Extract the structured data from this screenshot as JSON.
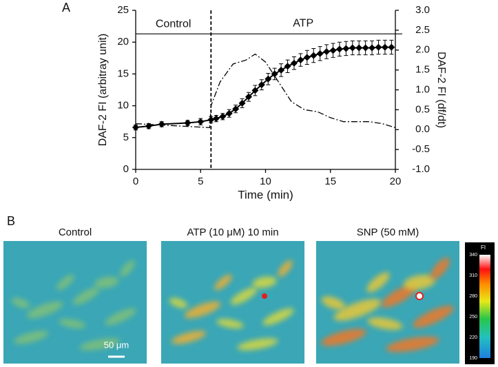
{
  "panel_labels": [
    "A",
    "B"
  ],
  "chart_data": {
    "type": "line",
    "xlabel": "Time (min)",
    "ylabel": "DAF-2 FI (arbitray unit)",
    "y2label": "DAF-2 FI (df/dt)",
    "xlim": [
      0,
      20
    ],
    "xticks": [
      0,
      5,
      10,
      15,
      20
    ],
    "ylim": [
      0,
      25
    ],
    "yticks": [
      0,
      5,
      10,
      15,
      20,
      25
    ],
    "y2lim": [
      -1,
      3
    ],
    "y2ticks": [
      {
        "value": 3,
        "label": "3.0"
      },
      2.5,
      {
        "value": 2,
        "label": "2.0"
      },
      1.5,
      {
        "value": 1,
        "label": "1.0"
      },
      0.5,
      {
        "value": 0,
        "label": "0.0"
      },
      -0.5,
      {
        "value": -1,
        "label": "-1.0"
      }
    ],
    "vline_x": 5.8,
    "hline_y": 21.3,
    "annotations": [
      "Control",
      "ATP"
    ],
    "series": [
      {
        "color": "#000000",
        "axis": "y",
        "x": [
          0,
          1,
          2,
          4,
          5,
          5.8,
          6.2,
          6.7,
          7.2,
          7.7,
          8.2,
          8.7,
          9.2,
          9.7,
          10.2,
          10.7,
          11.2,
          11.7,
          12.2,
          12.7,
          13.2,
          13.7,
          14.2,
          14.7,
          15.2,
          15.7,
          16.2,
          16.7,
          17.2,
          17.7,
          18.2,
          18.7,
          19.2,
          19.7
        ],
        "values": [
          6.6,
          6.8,
          7.1,
          7.3,
          7.5,
          7.8,
          8.0,
          8.3,
          8.8,
          9.5,
          10.4,
          11.4,
          12.4,
          13.3,
          14.2,
          15.0,
          15.6,
          16.2,
          16.7,
          17.2,
          17.6,
          17.9,
          18.2,
          18.5,
          18.7,
          18.9,
          19.0,
          19.1,
          19.1,
          19.1,
          19.1,
          19.2,
          19.2,
          19.2
        ],
        "errors": [
          0.4,
          0.4,
          0.4,
          0.4,
          0.5,
          0.5,
          0.5,
          0.5,
          0.6,
          0.6,
          0.7,
          0.7,
          0.8,
          0.8,
          0.9,
          0.9,
          1.0,
          1.0,
          1.0,
          1.0,
          1.1,
          1.1,
          1.1,
          1.1,
          1.1,
          1.1,
          1.1,
          1.1,
          1.1,
          1.1,
          1.1,
          1.1,
          1.1,
          1.1
        ]
      },
      {
        "color": "#000000",
        "axis": "y2",
        "dash": "dashdot",
        "x": [
          0,
          5.7,
          5.8,
          6.5,
          7.5,
          8.5,
          9.2,
          10,
          11,
          12,
          13,
          14,
          15,
          16,
          17,
          18,
          19,
          20
        ],
        "values": [
          0.15,
          0.05,
          0.6,
          1.2,
          1.65,
          1.75,
          1.9,
          1.7,
          1.2,
          0.7,
          0.5,
          0.45,
          0.3,
          0.2,
          0.2,
          0.2,
          0.15,
          0.05
        ]
      }
    ]
  },
  "images": [
    {
      "title": "Control"
    },
    {
      "title": "ATP (10 μM) 10 min"
    },
    {
      "title": "SNP (50 mM)"
    }
  ],
  "scale_bar": "50 μm",
  "colorbar": {
    "label": "FI",
    "range": [
      190,
      340
    ],
    "ticks": [
      340,
      310,
      280,
      250,
      220,
      190
    ]
  }
}
